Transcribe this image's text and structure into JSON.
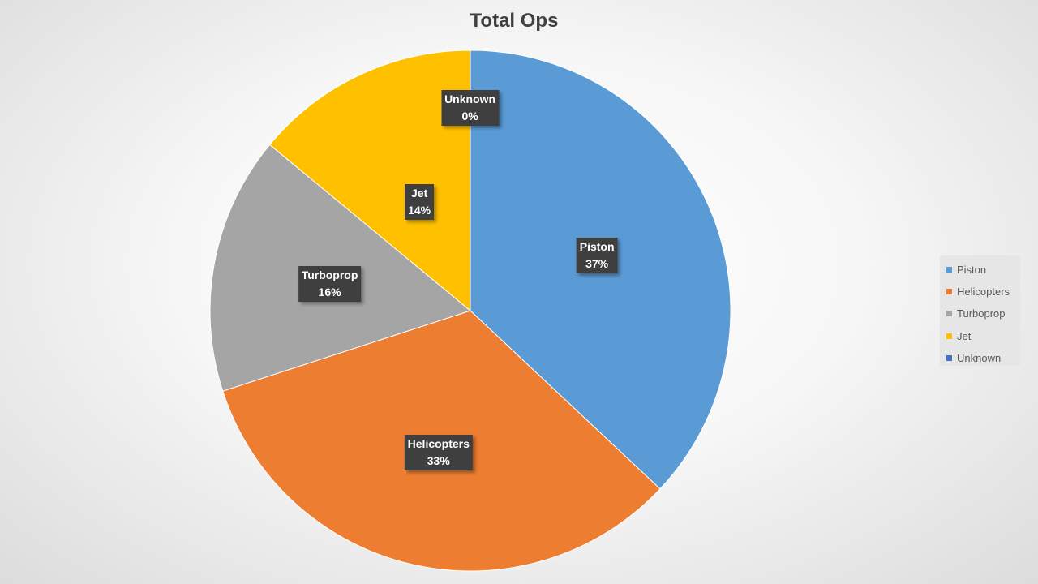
{
  "chart_data": {
    "type": "pie",
    "title": "Total Ops",
    "categories": [
      "Piston",
      "Helicopters",
      "Turboprop",
      "Jet",
      "Unknown"
    ],
    "values": [
      37,
      33,
      16,
      14,
      0
    ],
    "data_labels": [
      "37%",
      "33%",
      "16%",
      "14%",
      "0%"
    ],
    "colors": [
      "#5B9BD5",
      "#ED7D31",
      "#A5A5A5",
      "#FFC000",
      "#4472C4"
    ],
    "legend_position": "right",
    "start_angle": "12 o'clock, clockwise"
  }
}
